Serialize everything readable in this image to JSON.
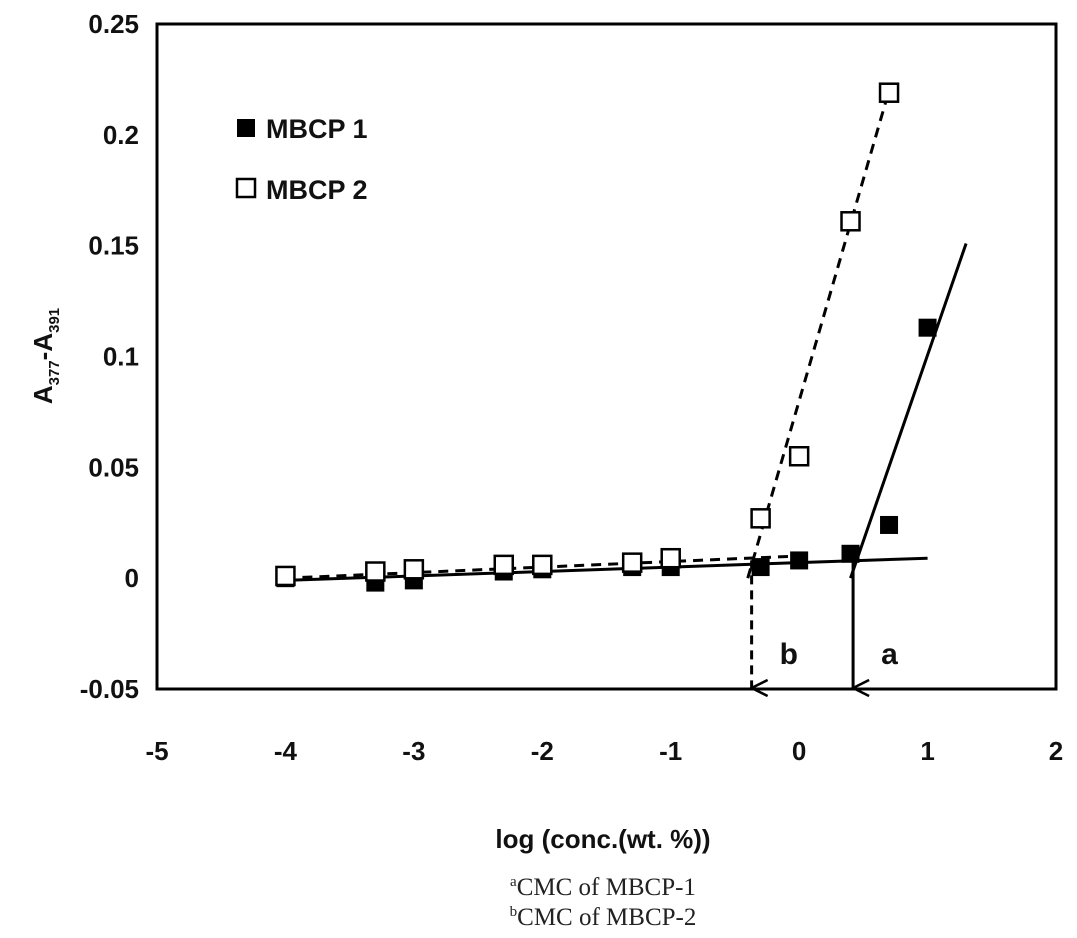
{
  "chart_data": {
    "type": "scatter",
    "xlabel": "log (conc.(wt. %))",
    "ylabel": {
      "base": "A",
      "sub1": "377",
      "sep": "-A",
      "sub2": "391"
    },
    "xlim": [
      -5,
      2
    ],
    "ylim": [
      -0.05,
      0.25
    ],
    "x_ticks": [
      "-5",
      "-4",
      "-3",
      "-2",
      "-1",
      "0",
      "1",
      "2"
    ],
    "y_ticks": [
      "-0.05",
      "0",
      "0.05",
      "0.1",
      "0.15",
      "0.2",
      "0.25"
    ],
    "grid": false,
    "legend_position": "top-left",
    "series": [
      {
        "name": "MBCP 1",
        "marker": "filled-square",
        "color": "#000000",
        "points": [
          {
            "x": -4,
            "y": 0.0
          },
          {
            "x": -3.3,
            "y": -0.002
          },
          {
            "x": -3,
            "y": -0.001
          },
          {
            "x": -2.3,
            "y": 0.003
          },
          {
            "x": -2,
            "y": 0.004
          },
          {
            "x": -1.3,
            "y": 0.005
          },
          {
            "x": -1,
            "y": 0.005
          },
          {
            "x": -0.3,
            "y": 0.005
          },
          {
            "x": 0,
            "y": 0.008
          },
          {
            "x": 0.4,
            "y": 0.011
          },
          {
            "x": 0.7,
            "y": 0.024
          },
          {
            "x": 1,
            "y": 0.113
          }
        ],
        "fit_lines": [
          {
            "style": "solid",
            "from": [
              -4,
              -0.001
            ],
            "to": [
              1,
              0.009
            ]
          },
          {
            "style": "solid",
            "from": [
              0.4,
              0.0
            ],
            "to": [
              1.3,
              0.151
            ]
          }
        ]
      },
      {
        "name": "MBCP 2",
        "marker": "open-square",
        "color": "#000000",
        "points": [
          {
            "x": -4,
            "y": 0.001
          },
          {
            "x": -3.3,
            "y": 0.003
          },
          {
            "x": -3,
            "y": 0.004
          },
          {
            "x": -2.3,
            "y": 0.006
          },
          {
            "x": -2,
            "y": 0.006
          },
          {
            "x": -1.3,
            "y": 0.007
          },
          {
            "x": -1,
            "y": 0.009
          },
          {
            "x": -0.3,
            "y": 0.027
          },
          {
            "x": 0,
            "y": 0.055
          },
          {
            "x": 0.4,
            "y": 0.161
          },
          {
            "x": 0.7,
            "y": 0.219
          }
        ],
        "fit_lines": [
          {
            "style": "dashed",
            "from": [
              -4,
              0.0
            ],
            "to": [
              0.0,
              0.01
            ]
          },
          {
            "style": "dashed",
            "from": [
              -0.4,
              0.0
            ],
            "to": [
              0.7,
              0.22
            ]
          }
        ]
      }
    ],
    "annotations": [
      {
        "label": "b",
        "style": "dashed",
        "x": -0.37,
        "from_y": 0.008,
        "to_y": -0.05
      },
      {
        "label": "a",
        "style": "solid",
        "x": 0.42,
        "from_y": 0.011,
        "to_y": -0.05
      }
    ]
  },
  "footnotes": [
    {
      "sup": "a",
      "text": "CMC of MBCP-1"
    },
    {
      "sup": "b",
      "text": "CMC of MBCP-2"
    }
  ]
}
